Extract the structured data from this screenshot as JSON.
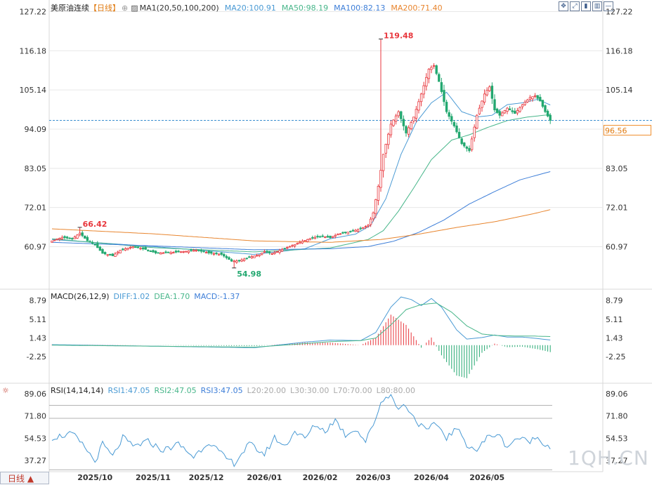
{
  "header": {
    "symbol": "美原油连续",
    "period": "【日线】",
    "settings_icon": "circle-plus-icon",
    "ma_icon": "indicator-icon",
    "ma_label": "MA1(20,50,100,200)",
    "ma20": "MA20:100.91",
    "ma50": "MA50:98.19",
    "ma100": "MA100:82.13",
    "ma200": "MA200:71.40"
  },
  "toolbar": [
    "expand-icon",
    "fit-icon",
    "candle-icon",
    "column-icon",
    "minimize-icon"
  ],
  "macd_header": {
    "title": "MACD(26,12,9)",
    "diff": "DIFF:1.02",
    "dea": "DEA:1.70",
    "macd": "MACD:-1.37"
  },
  "rsi_header": {
    "settings_icon": "gear-icon",
    "title": "RSI(14,14,14)",
    "rsi1": "RSI1:47.05",
    "rsi2": "RSI2:47.05",
    "rsi3": "RSI3:47.05",
    "l20": "L20:20.00",
    "l30": "L30:30.00",
    "l70": "L70:70.00",
    "l80": "L80:80.00"
  },
  "price_tag": "96.56",
  "period_button": "日线 ▲",
  "watermark": "1QH.CN",
  "colors": {
    "up": "#e8363c",
    "down": "#23a870",
    "ma20": "#4a9ad4",
    "ma50": "#48b68a",
    "ma100": "#3d7ed8",
    "ma200": "#e8852e",
    "diff": "#4a9ad4",
    "dea": "#48b68a",
    "rsi": "#4a9ad4",
    "grid": "#e8e8e8",
    "price_line": "#3a8fcf"
  },
  "chart_data": [
    {
      "type": "candlestick",
      "title": "美原油连续 日线",
      "yticks": [
        127.22,
        116.18,
        105.14,
        94.09,
        83.05,
        72.01,
        60.97
      ],
      "ylim": [
        49.0,
        128.5
      ],
      "xlabels": [
        "2025/10",
        "2025/11",
        "2025/12",
        "2026/01",
        "2026/02",
        "2026/03",
        "2026/04",
        "2026/05"
      ],
      "xlabel_index": [
        17,
        40,
        61,
        84,
        106,
        127,
        150,
        172
      ],
      "annotations": [
        {
          "text": "66.42",
          "index": 11,
          "value": 66.42,
          "kind": "high"
        },
        {
          "text": "54.98",
          "index": 72,
          "value": 54.98,
          "kind": "low"
        },
        {
          "text": "119.48",
          "index": 130,
          "value": 119.48,
          "kind": "high"
        }
      ],
      "last_price": 96.56,
      "anchors": [
        [
          0,
          62.6
        ],
        [
          4,
          63.6
        ],
        [
          8,
          63.2
        ],
        [
          11,
          64.8
        ],
        [
          14,
          62.6
        ],
        [
          17,
          61.5
        ],
        [
          20,
          59.1
        ],
        [
          24,
          58.4
        ],
        [
          27,
          60.0
        ],
        [
          32,
          61.0
        ],
        [
          37,
          60.2
        ],
        [
          41,
          59.2
        ],
        [
          47,
          59.3
        ],
        [
          52,
          59.6
        ],
        [
          57,
          60.0
        ],
        [
          62,
          59.2
        ],
        [
          67,
          58.8
        ],
        [
          71,
          56.9
        ],
        [
          74,
          57.0
        ],
        [
          78,
          58.0
        ],
        [
          82,
          58.7
        ],
        [
          84,
          59.6
        ],
        [
          87,
          59.0
        ],
        [
          91,
          60.2
        ],
        [
          95,
          61.3
        ],
        [
          99,
          62.5
        ],
        [
          103,
          63.5
        ],
        [
          107,
          63.9
        ],
        [
          110,
          63.5
        ],
        [
          113,
          64.5
        ],
        [
          116,
          64.9
        ],
        [
          119,
          65.4
        ],
        [
          122,
          66.0
        ],
        [
          125,
          67.0
        ],
        [
          127,
          70.5
        ],
        [
          129,
          78.0
        ],
        [
          131,
          87.0
        ],
        [
          134,
          95.5
        ],
        [
          137,
          99.0
        ],
        [
          140,
          93.0
        ],
        [
          143,
          97.5
        ],
        [
          146,
          104.0
        ],
        [
          149,
          111.0
        ],
        [
          151,
          112.0
        ],
        [
          153,
          107.5
        ],
        [
          156,
          99.0
        ],
        [
          159,
          95.0
        ],
        [
          162,
          90.0
        ],
        [
          165,
          88.0
        ],
        [
          168,
          98.0
        ],
        [
          171,
          104.0
        ],
        [
          173,
          106.0
        ],
        [
          175,
          99.5
        ],
        [
          177,
          98.0
        ],
        [
          180,
          100.0
        ],
        [
          183,
          98.5
        ],
        [
          186,
          101.0
        ],
        [
          189,
          103.0
        ],
        [
          191,
          103.5
        ],
        [
          193,
          102.0
        ],
        [
          195,
          99.0
        ],
        [
          197,
          96.56
        ]
      ],
      "ma": {
        "ma20": [
          [
            0,
            63.0
          ],
          [
            40,
            61.0
          ],
          [
            80,
            58.8
          ],
          [
            100,
            60.4
          ],
          [
            110,
            63.2
          ],
          [
            120,
            64.5
          ],
          [
            126,
            67.0
          ],
          [
            132,
            74.5
          ],
          [
            138,
            87.0
          ],
          [
            144,
            96.0
          ],
          [
            150,
            101.5
          ],
          [
            156,
            104.5
          ],
          [
            162,
            99.0
          ],
          [
            168,
            97.5
          ],
          [
            174,
            98.0
          ],
          [
            180,
            101.0
          ],
          [
            186,
            101.5
          ],
          [
            192,
            102.5
          ],
          [
            197,
            100.91
          ]
        ],
        "ma50": [
          [
            0,
            63.2
          ],
          [
            40,
            60.7
          ],
          [
            80,
            59.5
          ],
          [
            110,
            60.6
          ],
          [
            125,
            63.0
          ],
          [
            131,
            65.5
          ],
          [
            137,
            71.0
          ],
          [
            143,
            77.5
          ],
          [
            150,
            85.5
          ],
          [
            158,
            91.0
          ],
          [
            165,
            92.5
          ],
          [
            172,
            94.5
          ],
          [
            180,
            96.5
          ],
          [
            188,
            97.5
          ],
          [
            197,
            98.19
          ]
        ],
        "ma100": [
          [
            0,
            62.2
          ],
          [
            40,
            61.2
          ],
          [
            80,
            60.1
          ],
          [
            110,
            60.4
          ],
          [
            125,
            61.0
          ],
          [
            135,
            62.5
          ],
          [
            145,
            65.0
          ],
          [
            155,
            68.5
          ],
          [
            165,
            73.0
          ],
          [
            175,
            76.5
          ],
          [
            185,
            79.8
          ],
          [
            197,
            82.13
          ]
        ],
        "ma200": [
          [
            0,
            66.0
          ],
          [
            40,
            64.6
          ],
          [
            80,
            62.6
          ],
          [
            110,
            62.2
          ],
          [
            130,
            63.0
          ],
          [
            145,
            64.5
          ],
          [
            160,
            66.4
          ],
          [
            175,
            68.0
          ],
          [
            190,
            70.2
          ],
          [
            197,
            71.4
          ]
        ]
      }
    },
    {
      "type": "line",
      "title": "MACD(26,12,9)",
      "yticks": [
        8.79,
        5.11,
        1.43,
        -2.25
      ],
      "ylim": [
        -7.5,
        10.2
      ],
      "series": [
        {
          "name": "DIFF",
          "values": [
            [
              0,
              0.1
            ],
            [
              40,
              -0.2
            ],
            [
              80,
              -0.5
            ],
            [
              100,
              0.6
            ],
            [
              110,
              1.0
            ],
            [
              122,
              0.9
            ],
            [
              128,
              2.5
            ],
            [
              134,
              7.5
            ],
            [
              138,
              9.5
            ],
            [
              142,
              9.0
            ],
            [
              146,
              7.8
            ],
            [
              150,
              9.2
            ],
            [
              154,
              7.5
            ],
            [
              160,
              3.0
            ],
            [
              164,
              1.2
            ],
            [
              170,
              1.5
            ],
            [
              175,
              2.0
            ],
            [
              180,
              1.6
            ],
            [
              186,
              1.6
            ],
            [
              192,
              1.3
            ],
            [
              197,
              1.02
            ]
          ]
        },
        {
          "name": "DEA",
          "values": [
            [
              0,
              0.0
            ],
            [
              40,
              -0.2
            ],
            [
              80,
              -0.4
            ],
            [
              100,
              0.3
            ],
            [
              110,
              0.7
            ],
            [
              122,
              0.9
            ],
            [
              128,
              1.4
            ],
            [
              134,
              4.0
            ],
            [
              140,
              7.0
            ],
            [
              146,
              8.0
            ],
            [
              152,
              8.3
            ],
            [
              158,
              6.5
            ],
            [
              164,
              3.8
            ],
            [
              170,
              2.2
            ],
            [
              176,
              1.9
            ],
            [
              184,
              1.8
            ],
            [
              190,
              1.8
            ],
            [
              197,
              1.7
            ]
          ]
        }
      ],
      "bars": [
        [
          0,
          0.1
        ],
        [
          40,
          0.0
        ],
        [
          60,
          -0.1
        ],
        [
          80,
          -0.2
        ],
        [
          100,
          0.5
        ],
        [
          110,
          0.5
        ],
        [
          122,
          0.0
        ],
        [
          128,
          1.5
        ],
        [
          134,
          6.0
        ],
        [
          140,
          4.0
        ],
        [
          146,
          -0.5
        ],
        [
          150,
          1.5
        ],
        [
          154,
          -2.0
        ],
        [
          160,
          -6.0
        ],
        [
          164,
          -6.5
        ],
        [
          170,
          -1.5
        ],
        [
          175,
          0.3
        ],
        [
          180,
          -0.4
        ],
        [
          186,
          -0.3
        ],
        [
          192,
          -0.8
        ],
        [
          197,
          -1.37
        ]
      ]
    },
    {
      "type": "line",
      "title": "RSI(14,14,14)",
      "yticks": [
        89.06,
        71.8,
        54.53,
        37.27
      ],
      "ylim": [
        28.5,
        94.0
      ],
      "levels": [
        20,
        30,
        70,
        80
      ],
      "series": [
        {
          "name": "RSI1",
          "values": [
            [
              0,
              55
            ],
            [
              8,
              58
            ],
            [
              14,
              45
            ],
            [
              17,
              36
            ],
            [
              20,
              50
            ],
            [
              24,
              40
            ],
            [
              28,
              55
            ],
            [
              32,
              48
            ],
            [
              38,
              52
            ],
            [
              44,
              45
            ],
            [
              50,
              50
            ],
            [
              56,
              40
            ],
            [
              62,
              52
            ],
            [
              68,
              40
            ],
            [
              72,
              35
            ],
            [
              78,
              50
            ],
            [
              84,
              42
            ],
            [
              88,
              55
            ],
            [
              92,
              48
            ],
            [
              96,
              60
            ],
            [
              100,
              54
            ],
            [
              104,
              65
            ],
            [
              108,
              60
            ],
            [
              112,
              69
            ],
            [
              116,
              57
            ],
            [
              120,
              62
            ],
            [
              124,
              52
            ],
            [
              127,
              65
            ],
            [
              130,
              82
            ],
            [
              132,
              86
            ],
            [
              134,
              90
            ],
            [
              136,
              78
            ],
            [
              140,
              80
            ],
            [
              144,
              68
            ],
            [
              148,
              60
            ],
            [
              152,
              66
            ],
            [
              156,
              55
            ],
            [
              160,
              62
            ],
            [
              164,
              50
            ],
            [
              168,
              45
            ],
            [
              172,
              55
            ],
            [
              176,
              58
            ],
            [
              180,
              48
            ],
            [
              184,
              55
            ],
            [
              188,
              52
            ],
            [
              192,
              55
            ],
            [
              197,
              47.05
            ]
          ]
        }
      ]
    }
  ]
}
